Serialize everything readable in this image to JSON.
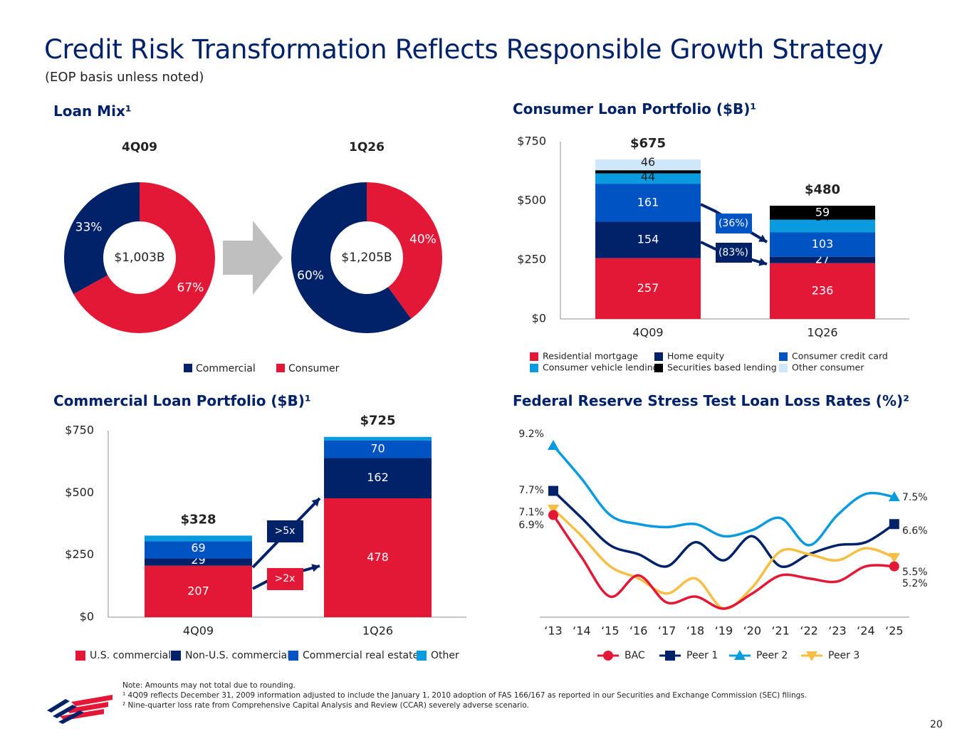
{
  "header": {
    "title": "Credit Risk Transformation Reflects Responsible Growth Strategy",
    "subtitle": "(EOP basis unless noted)"
  },
  "colors": {
    "navy": "#012169",
    "red": "#E31837",
    "blue": "#0053C2",
    "light_blue": "#0A9BDE",
    "pale_blue": "#CFE8F7",
    "black": "#000000",
    "yellow": "#F7BE44",
    "gray_arrow": "#BFBFBF"
  },
  "chart_data": [
    {
      "id": "loan-mix",
      "type": "pie",
      "title": "Loan Mix¹",
      "legend": [
        "Commercial",
        "Consumer"
      ],
      "donuts": [
        {
          "period": "4Q09",
          "center_label": "$1,003B",
          "slices": [
            {
              "name": "Consumer",
              "value": 67,
              "label": "67%"
            },
            {
              "name": "Commercial",
              "value": 33,
              "label": "33%"
            }
          ]
        },
        {
          "period": "1Q26",
          "center_label": "$1,205B",
          "slices": [
            {
              "name": "Consumer",
              "value": 40,
              "label": "40%"
            },
            {
              "name": "Commercial",
              "value": 60,
              "label": "60%"
            }
          ]
        }
      ]
    },
    {
      "id": "consumer-portfolio",
      "type": "bar",
      "stacked": true,
      "title": "Consumer Loan Portfolio ($B)¹",
      "categories": [
        "4Q09",
        "1Q26"
      ],
      "ylim": [
        0,
        750
      ],
      "yticks": [
        0,
        250,
        500,
        750
      ],
      "ytick_labels": [
        "$0",
        "$250",
        "$500",
        "$750"
      ],
      "totals": [
        "$675",
        "$480"
      ],
      "series": [
        {
          "name": "Residential mortgage",
          "values": [
            257,
            236
          ]
        },
        {
          "name": "Home equity",
          "values": [
            154,
            27
          ]
        },
        {
          "name": "Consumer credit card",
          "values": [
            161,
            103
          ]
        },
        {
          "name": "Consumer vehicle lending",
          "values": [
            44,
            54
          ]
        },
        {
          "name": "Securities based lending",
          "values": [
            13,
            59
          ]
        },
        {
          "name": "Other consumer",
          "values": [
            46,
            0
          ]
        }
      ],
      "annotations": [
        {
          "label": "(36%)",
          "series": "Consumer credit card"
        },
        {
          "label": "(83%)",
          "series": "Home equity"
        }
      ]
    },
    {
      "id": "commercial-portfolio",
      "type": "bar",
      "stacked": true,
      "title": "Commercial Loan Portfolio ($B)¹",
      "categories": [
        "4Q09",
        "1Q26"
      ],
      "ylim": [
        0,
        750
      ],
      "yticks": [
        0,
        250,
        500,
        750
      ],
      "ytick_labels": [
        "$0",
        "$250",
        "$500",
        "$750"
      ],
      "totals": [
        "$328",
        "$725"
      ],
      "series": [
        {
          "name": "U.S. commercial",
          "values": [
            207,
            478
          ]
        },
        {
          "name": "Non-U.S. commercial",
          "values": [
            29,
            162
          ]
        },
        {
          "name": "Commercial real estate",
          "values": [
            69,
            70
          ]
        },
        {
          "name": "Other",
          "values": [
            23,
            15
          ]
        }
      ],
      "annotations": [
        {
          "label": ">5x",
          "series": "Non-U.S. commercial"
        },
        {
          "label": ">2x",
          "series": "U.S. commercial"
        }
      ]
    },
    {
      "id": "stress-test",
      "type": "line",
      "title": "Federal Reserve Stress Test Loan Loss Rates (%)²",
      "x": [
        "‘13",
        "‘14",
        "‘15",
        "‘16",
        "‘17",
        "‘18",
        "‘19",
        "‘20",
        "‘21",
        "‘22",
        "‘23",
        "‘24",
        "‘25"
      ],
      "ylim": [
        3.8,
        9.6
      ],
      "series": [
        {
          "name": "BAC",
          "marker": "circle",
          "values": [
            6.9,
            5.5,
            4.2,
            4.9,
            4.0,
            4.2,
            3.8,
            4.3,
            4.9,
            4.8,
            4.7,
            5.2,
            5.2
          ],
          "start_label": "6.9%",
          "end_label": "5.2%"
        },
        {
          "name": "Peer 1",
          "marker": "square",
          "values": [
            7.7,
            6.8,
            5.9,
            5.6,
            5.2,
            6.0,
            5.4,
            6.2,
            5.2,
            5.6,
            5.9,
            6.0,
            6.6
          ],
          "start_label": "7.7%",
          "end_label": "6.6%"
        },
        {
          "name": "Peer 2",
          "marker": "triangle",
          "values": [
            9.2,
            8.1,
            6.9,
            6.6,
            6.5,
            6.6,
            6.2,
            6.4,
            6.8,
            5.9,
            6.9,
            7.6,
            7.5
          ],
          "start_label": "9.2%",
          "end_label": "7.5%"
        },
        {
          "name": "Peer 3",
          "marker": "triangle-down",
          "values": [
            7.1,
            6.2,
            5.2,
            4.8,
            4.3,
            4.8,
            3.8,
            4.5,
            5.7,
            5.6,
            5.4,
            5.8,
            5.5
          ],
          "start_label": "7.1%",
          "end_label": "5.5%"
        }
      ]
    }
  ],
  "footnotes": {
    "note": "Note: Amounts may not total due to rounding.",
    "fn1": "¹ 4Q09 reflects December 31, 2009 information adjusted to include the January 1, 2010 adoption of FAS 166/167 as reported in our Securities and Exchange Commission (SEC) filings.",
    "fn2": "² Nine-quarter loss rate from Comprehensive Capital Analysis and Review (CCAR) severely adverse scenario."
  },
  "page_number": "20"
}
